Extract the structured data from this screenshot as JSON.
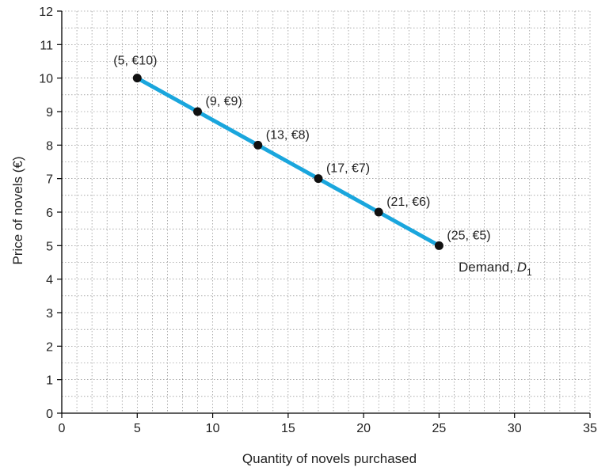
{
  "chart_data": {
    "type": "line",
    "title": "",
    "xlabel": "Quantity of novels purchased",
    "ylabel": "Price of novels (€)",
    "xlim": [
      0,
      35
    ],
    "ylim": [
      0,
      12
    ],
    "x_ticks": [
      "0",
      "5",
      "10",
      "15",
      "20",
      "25",
      "30",
      "35"
    ],
    "y_ticks": [
      "0",
      "1",
      "2",
      "3",
      "4",
      "5",
      "6",
      "7",
      "8",
      "9",
      "10",
      "11",
      "12"
    ],
    "grid": true,
    "series": [
      {
        "name": "Demand, D1",
        "label_main": "Demand, ",
        "label_italic": "D",
        "label_subscript": "1",
        "color": "#1aa6dd",
        "x": [
          5,
          9,
          13,
          17,
          21,
          25
        ],
        "y": [
          10,
          9,
          8,
          7,
          6,
          5
        ],
        "point_labels": [
          "(5, €10)",
          "(9, €9)",
          "(13, €8)",
          "(17, €7)",
          "(21, €6)",
          "(25, €5)"
        ]
      }
    ]
  }
}
